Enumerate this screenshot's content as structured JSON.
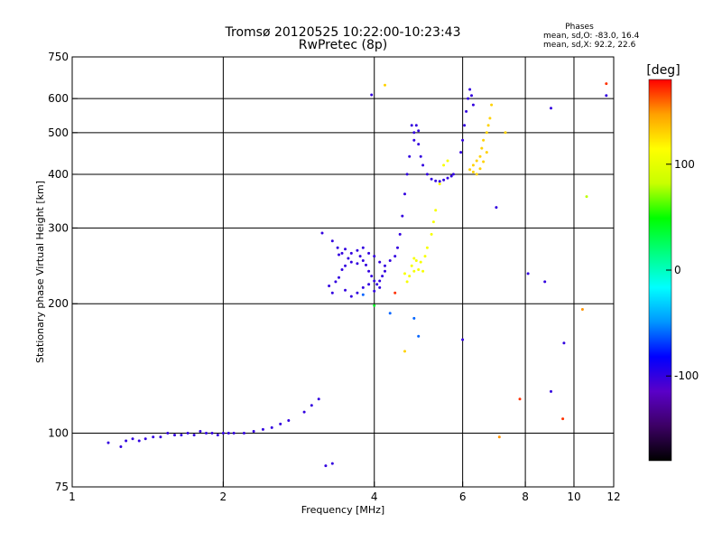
{
  "chart_data": {
    "type": "scatter",
    "title": "Tromsø 20120525 10:22:00-10:23:43",
    "subtitle": "RwPretec (8p)",
    "xlabel": "Frequency [MHz]",
    "ylabel": "Stationary phase Virtual Height [km]",
    "x_scale": "log",
    "y_scale": "log",
    "xlim": [
      1,
      12
    ],
    "ylim": [
      75,
      750
    ],
    "x_ticks": [
      1,
      2,
      4,
      6,
      8,
      10,
      12
    ],
    "y_ticks": [
      75,
      100,
      200,
      300,
      400,
      500,
      600,
      750
    ],
    "x_grid": [
      2,
      4,
      6,
      8,
      10
    ],
    "y_grid": [
      100,
      200,
      300,
      400,
      500,
      600
    ],
    "grid": true,
    "stats": {
      "title": "Phases",
      "line1": "mean, sd,O: -83.0, 16.4",
      "line2": "mean, sd,X: 92.2, 22.6"
    },
    "colorbar": {
      "label": "[deg]",
      "range": [
        -180,
        180
      ],
      "ticks": [
        100,
        0,
        -100
      ],
      "colormap": [
        "#000000",
        "#3c0064",
        "#5a00c8",
        "#0000ff",
        "#0096ff",
        "#00ffff",
        "#00ff80",
        "#00ff00",
        "#c8ff00",
        "#ffff00",
        "#ffa000",
        "#ff0000"
      ]
    },
    "series": [
      {
        "phase_deg": -100,
        "points": [
          [
            1.18,
            95
          ],
          [
            1.25,
            93
          ],
          [
            1.28,
            96
          ],
          [
            1.32,
            97
          ],
          [
            1.36,
            96
          ],
          [
            1.4,
            97
          ],
          [
            1.45,
            98
          ],
          [
            1.5,
            98
          ],
          [
            1.55,
            100
          ],
          [
            1.6,
            99
          ],
          [
            1.65,
            99
          ],
          [
            1.7,
            100
          ],
          [
            1.75,
            99
          ],
          [
            1.8,
            101
          ],
          [
            1.85,
            100
          ],
          [
            1.9,
            100
          ],
          [
            1.95,
            99
          ],
          [
            2.0,
            100
          ],
          [
            2.05,
            100
          ],
          [
            2.1,
            100
          ],
          [
            2.2,
            100
          ],
          [
            2.3,
            101
          ],
          [
            2.4,
            102
          ],
          [
            2.5,
            103
          ],
          [
            2.6,
            105
          ],
          [
            2.7,
            107
          ],
          [
            2.9,
            112
          ],
          [
            3.0,
            116
          ],
          [
            3.1,
            120
          ],
          [
            3.25,
            220
          ],
          [
            3.3,
            212
          ],
          [
            3.35,
            225
          ],
          [
            3.4,
            230
          ],
          [
            3.45,
            240
          ],
          [
            3.5,
            245
          ],
          [
            3.3,
            280
          ],
          [
            3.38,
            270
          ],
          [
            3.45,
            262
          ],
          [
            3.55,
            255
          ],
          [
            3.6,
            250
          ],
          [
            3.7,
            248
          ],
          [
            3.75,
            258
          ],
          [
            3.8,
            252
          ],
          [
            3.85,
            246
          ],
          [
            3.9,
            238
          ],
          [
            3.95,
            232
          ],
          [
            4.0,
            226
          ],
          [
            4.05,
            222
          ],
          [
            4.1,
            226
          ],
          [
            4.15,
            232
          ],
          [
            4.2,
            238
          ],
          [
            3.5,
            215
          ],
          [
            3.6,
            208
          ],
          [
            3.7,
            212
          ],
          [
            3.8,
            218
          ],
          [
            3.9,
            222
          ],
          [
            4.0,
            214
          ],
          [
            4.1,
            218
          ],
          [
            3.4,
            260
          ],
          [
            3.5,
            268
          ],
          [
            3.6,
            262
          ],
          [
            3.7,
            266
          ],
          [
            3.8,
            270
          ],
          [
            3.9,
            262
          ],
          [
            4.0,
            258
          ],
          [
            4.1,
            250
          ],
          [
            4.2,
            245
          ],
          [
            4.3,
            252
          ],
          [
            4.4,
            258
          ],
          [
            4.45,
            270
          ],
          [
            4.5,
            290
          ],
          [
            4.55,
            320
          ],
          [
            4.6,
            360
          ],
          [
            4.65,
            400
          ],
          [
            4.7,
            440
          ],
          [
            4.8,
            480
          ],
          [
            4.9,
            470
          ],
          [
            4.95,
            440
          ],
          [
            5.0,
            420
          ],
          [
            5.1,
            400
          ],
          [
            5.2,
            390
          ],
          [
            5.3,
            386
          ],
          [
            5.4,
            385
          ],
          [
            5.5,
            388
          ],
          [
            5.6,
            392
          ],
          [
            5.7,
            396
          ],
          [
            5.75,
            400
          ],
          [
            4.75,
            520
          ],
          [
            4.8,
            500
          ],
          [
            4.85,
            520
          ],
          [
            4.9,
            505
          ],
          [
            5.95,
            450
          ],
          [
            6.0,
            480
          ],
          [
            6.05,
            520
          ],
          [
            6.1,
            560
          ],
          [
            6.15,
            600
          ],
          [
            6.2,
            630
          ],
          [
            6.25,
            610
          ],
          [
            6.3,
            580
          ],
          [
            3.2,
            84
          ],
          [
            3.3,
            85
          ],
          [
            3.95,
            612
          ],
          [
            3.15,
            292
          ],
          [
            9.0,
            570
          ],
          [
            11.6,
            610
          ],
          [
            7.0,
            335
          ],
          [
            6.0,
            165
          ],
          [
            9.0,
            125
          ],
          [
            8.75,
            225
          ],
          [
            9.55,
            162
          ],
          [
            8.1,
            235
          ]
        ]
      },
      {
        "phase_deg": 110,
        "points": [
          [
            4.6,
            235
          ],
          [
            4.7,
            232
          ],
          [
            4.8,
            238
          ],
          [
            4.9,
            240
          ],
          [
            5.0,
            238
          ],
          [
            4.75,
            245
          ],
          [
            4.85,
            252
          ],
          [
            4.95,
            250
          ],
          [
            5.05,
            258
          ],
          [
            5.1,
            270
          ],
          [
            5.2,
            290
          ],
          [
            5.25,
            310
          ],
          [
            5.3,
            330
          ],
          [
            5.4,
            380
          ],
          [
            5.5,
            420
          ],
          [
            5.6,
            430
          ],
          [
            4.65,
            225
          ],
          [
            4.8,
            255
          ]
        ]
      },
      {
        "phase_deg": 130,
        "points": [
          [
            6.2,
            410
          ],
          [
            6.3,
            420
          ],
          [
            6.4,
            430
          ],
          [
            6.5,
            440
          ],
          [
            6.55,
            460
          ],
          [
            6.6,
            480
          ],
          [
            6.7,
            500
          ],
          [
            6.75,
            520
          ],
          [
            6.8,
            540
          ],
          [
            6.85,
            580
          ],
          [
            6.3,
            405
          ],
          [
            6.4,
            400
          ],
          [
            6.5,
            412
          ],
          [
            6.6,
            428
          ],
          [
            6.7,
            450
          ],
          [
            4.2,
            645
          ],
          [
            7.3,
            500
          ],
          [
            4.6,
            155
          ]
        ]
      },
      {
        "phase_deg": -60,
        "points": [
          [
            3.8,
            210
          ],
          [
            4.8,
            185
          ],
          [
            4.9,
            168
          ],
          [
            4.3,
            190
          ]
        ]
      },
      {
        "phase_deg": 170,
        "points": [
          [
            11.6,
            650
          ],
          [
            7.8,
            120
          ],
          [
            9.5,
            108
          ],
          [
            4.4,
            212
          ]
        ]
      },
      {
        "phase_deg": 150,
        "points": [
          [
            7.1,
            98
          ],
          [
            10.4,
            194
          ]
        ]
      },
      {
        "phase_deg": 80,
        "points": [
          [
            10.6,
            355
          ]
        ]
      },
      {
        "phase_deg": 40,
        "points": [
          [
            4.0,
            198
          ]
        ]
      }
    ]
  }
}
